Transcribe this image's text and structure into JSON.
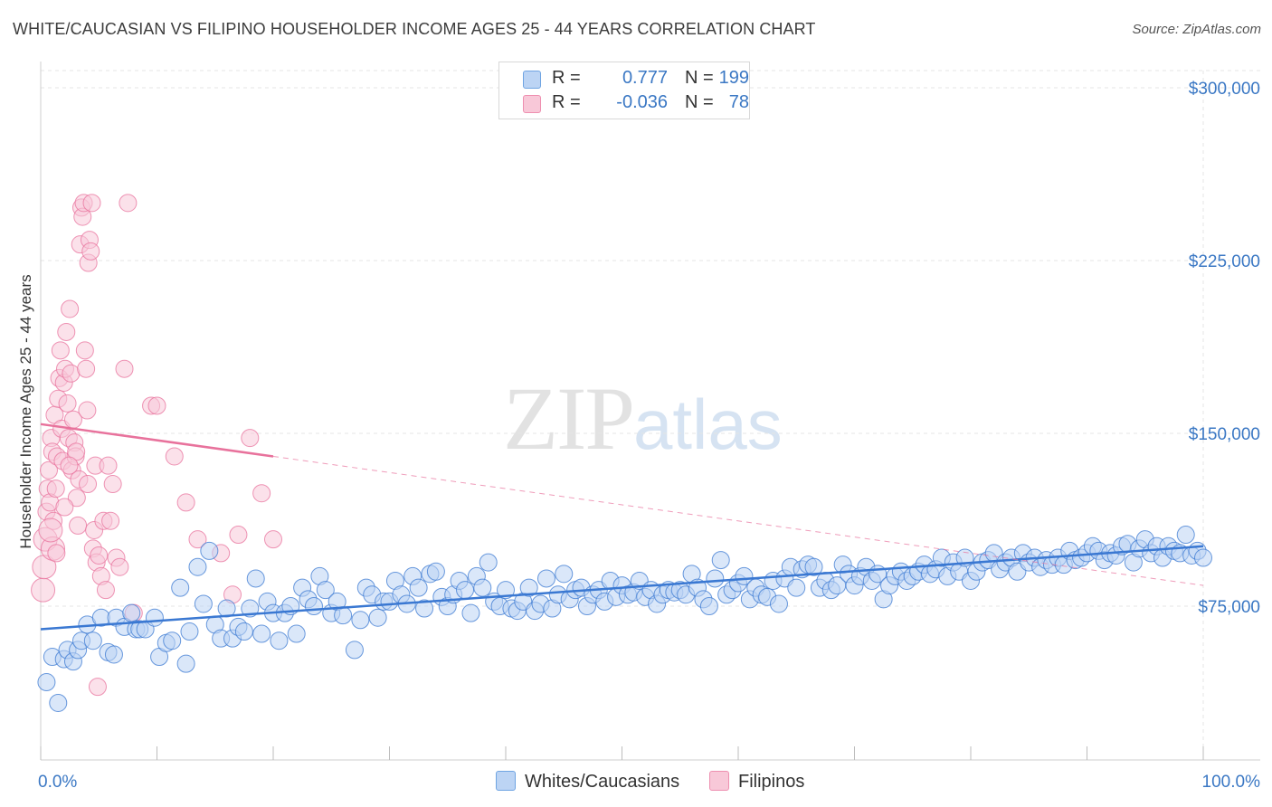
{
  "title": "WHITE/CAUCASIAN VS FILIPINO HOUSEHOLDER INCOME AGES 25 - 44 YEARS CORRELATION CHART",
  "source": "Source: ZipAtlas.com",
  "watermark": {
    "zip": "ZIP",
    "atlas": "atlas"
  },
  "legend": {
    "rows": [
      {
        "r_label": "R =",
        "r_value": "0.777",
        "n_label": "N =",
        "n_value": "199",
        "color": "#6fa4e2",
        "fill": "#bcd4f4"
      },
      {
        "r_label": "R =",
        "r_value": "-0.036",
        "n_label": "N =",
        "n_value": "78",
        "color": "#ee8fb0",
        "fill": "#f8c8d8"
      }
    ]
  },
  "bottom_legend": [
    "Whites/Caucasians",
    "Filipinos"
  ],
  "chart_data": {
    "type": "scatter",
    "xlabel": "",
    "ylabel": "Householder Income Ages 25 - 44 years",
    "xlim": [
      0,
      100
    ],
    "ylim": [
      0,
      310000
    ],
    "x_tick_labels": [
      "0.0%",
      "100.0%"
    ],
    "y_ticks": [
      75000,
      150000,
      225000,
      300000
    ],
    "y_tick_labels": [
      "$75,000",
      "$150,000",
      "$225,000",
      "$300,000"
    ],
    "grid": true,
    "legend_position": "top-center",
    "series": [
      {
        "name": "Whites/Caucasians",
        "color": "#3a78d2",
        "fill": "#bcd4f4",
        "trend": {
          "x0": 0,
          "y0": 65000,
          "x1": 100,
          "y1": 101000,
          "solid_to": 100
        },
        "points": [
          [
            0.5,
            42000
          ],
          [
            1,
            53000
          ],
          [
            1.5,
            33000
          ],
          [
            2,
            52000
          ],
          [
            2.3,
            56000
          ],
          [
            2.8,
            51000
          ],
          [
            3.2,
            56000
          ],
          [
            3.5,
            60000
          ],
          [
            4,
            67000
          ],
          [
            4.5,
            60000
          ],
          [
            5.2,
            70000
          ],
          [
            5.8,
            55000
          ],
          [
            6.3,
            54000
          ],
          [
            6.5,
            70000
          ],
          [
            7.2,
            66000
          ],
          [
            7.8,
            72000
          ],
          [
            8.2,
            65000
          ],
          [
            8.5,
            65000
          ],
          [
            9,
            65000
          ],
          [
            9.8,
            70000
          ],
          [
            10.2,
            53000
          ],
          [
            10.8,
            59000
          ],
          [
            11.3,
            60000
          ],
          [
            12,
            83000
          ],
          [
            12.5,
            50000
          ],
          [
            12.8,
            64000
          ],
          [
            13.5,
            92000
          ],
          [
            14,
            76000
          ],
          [
            14.5,
            99000
          ],
          [
            15,
            67000
          ],
          [
            15.5,
            61000
          ],
          [
            16,
            74000
          ],
          [
            16.5,
            61000
          ],
          [
            17,
            66000
          ],
          [
            17.5,
            64000
          ],
          [
            18,
            74000
          ],
          [
            18.5,
            87000
          ],
          [
            19,
            63000
          ],
          [
            19.5,
            77000
          ],
          [
            20,
            72000
          ],
          [
            20.5,
            60000
          ],
          [
            21,
            72000
          ],
          [
            21.5,
            75000
          ],
          [
            22,
            63000
          ],
          [
            22.5,
            83000
          ],
          [
            23,
            78000
          ],
          [
            23.5,
            75000
          ],
          [
            24,
            88000
          ],
          [
            24.5,
            82000
          ],
          [
            25,
            72000
          ],
          [
            25.5,
            77000
          ],
          [
            26,
            71000
          ],
          [
            27,
            56000
          ],
          [
            27.5,
            69000
          ],
          [
            28,
            83000
          ],
          [
            28.5,
            80000
          ],
          [
            29,
            70000
          ],
          [
            29.5,
            77000
          ],
          [
            30,
            77000
          ],
          [
            30.5,
            86000
          ],
          [
            31,
            80000
          ],
          [
            31.5,
            76000
          ],
          [
            32,
            88000
          ],
          [
            32.5,
            83000
          ],
          [
            33,
            74000
          ],
          [
            33.5,
            89000
          ],
          [
            34,
            90000
          ],
          [
            34.5,
            79000
          ],
          [
            35,
            75000
          ],
          [
            35.5,
            80000
          ],
          [
            36,
            86000
          ],
          [
            36.5,
            82000
          ],
          [
            37,
            72000
          ],
          [
            37.5,
            88000
          ],
          [
            38,
            83000
          ],
          [
            38.5,
            94000
          ],
          [
            39,
            77000
          ],
          [
            39.5,
            75000
          ],
          [
            40,
            82000
          ],
          [
            40.5,
            74000
          ],
          [
            41,
            73000
          ],
          [
            41.5,
            77000
          ],
          [
            42,
            83000
          ],
          [
            42.5,
            73000
          ],
          [
            43,
            76000
          ],
          [
            43.5,
            87000
          ],
          [
            44,
            74000
          ],
          [
            44.5,
            80000
          ],
          [
            45,
            89000
          ],
          [
            45.5,
            78000
          ],
          [
            46,
            82000
          ],
          [
            46.5,
            83000
          ],
          [
            47,
            75000
          ],
          [
            47.5,
            80000
          ],
          [
            48,
            82000
          ],
          [
            48.5,
            77000
          ],
          [
            49,
            86000
          ],
          [
            49.5,
            79000
          ],
          [
            50,
            84000
          ],
          [
            50.5,
            80000
          ],
          [
            51,
            81000
          ],
          [
            51.5,
            86000
          ],
          [
            52,
            79000
          ],
          [
            52.5,
            82000
          ],
          [
            53,
            76000
          ],
          [
            53.5,
            80000
          ],
          [
            54,
            82000
          ],
          [
            54.5,
            81000
          ],
          [
            55,
            82000
          ],
          [
            55.5,
            80000
          ],
          [
            56,
            89000
          ],
          [
            56.5,
            83000
          ],
          [
            57,
            78000
          ],
          [
            57.5,
            75000
          ],
          [
            58,
            87000
          ],
          [
            58.5,
            95000
          ],
          [
            59,
            80000
          ],
          [
            59.5,
            82000
          ],
          [
            60,
            85000
          ],
          [
            60.5,
            88000
          ],
          [
            61,
            78000
          ],
          [
            61.5,
            83000
          ],
          [
            62,
            80000
          ],
          [
            62.5,
            79000
          ],
          [
            63,
            86000
          ],
          [
            63.5,
            76000
          ],
          [
            64,
            87000
          ],
          [
            64.5,
            92000
          ],
          [
            65,
            83000
          ],
          [
            65.5,
            91000
          ],
          [
            66,
            93000
          ],
          [
            66.5,
            92000
          ],
          [
            67,
            83000
          ],
          [
            67.5,
            86000
          ],
          [
            68,
            82000
          ],
          [
            68.5,
            84000
          ],
          [
            69,
            93000
          ],
          [
            69.5,
            89000
          ],
          [
            70,
            84000
          ],
          [
            70.5,
            88000
          ],
          [
            71,
            92000
          ],
          [
            71.5,
            86000
          ],
          [
            72,
            89000
          ],
          [
            72.5,
            78000
          ],
          [
            73,
            84000
          ],
          [
            73.5,
            88000
          ],
          [
            74,
            90000
          ],
          [
            74.5,
            86000
          ],
          [
            75,
            88000
          ],
          [
            75.5,
            90000
          ],
          [
            76,
            93000
          ],
          [
            76.5,
            89000
          ],
          [
            77,
            91000
          ],
          [
            77.5,
            96000
          ],
          [
            78,
            88000
          ],
          [
            78.5,
            94000
          ],
          [
            79,
            90000
          ],
          [
            79.5,
            96000
          ],
          [
            80,
            86000
          ],
          [
            80.5,
            90000
          ],
          [
            81,
            94000
          ],
          [
            81.5,
            95000
          ],
          [
            82,
            98000
          ],
          [
            82.5,
            91000
          ],
          [
            83,
            94000
          ],
          [
            83.5,
            96000
          ],
          [
            84,
            90000
          ],
          [
            84.5,
            98000
          ],
          [
            85,
            94000
          ],
          [
            85.5,
            96000
          ],
          [
            86,
            92000
          ],
          [
            86.5,
            95000
          ],
          [
            87,
            93000
          ],
          [
            87.5,
            96000
          ],
          [
            88,
            93000
          ],
          [
            88.5,
            99000
          ],
          [
            89,
            95000
          ],
          [
            89.5,
            96000
          ],
          [
            90,
            98000
          ],
          [
            90.5,
            101000
          ],
          [
            91,
            99000
          ],
          [
            91.5,
            95000
          ],
          [
            92,
            98000
          ],
          [
            92.5,
            97000
          ],
          [
            93,
            101000
          ],
          [
            93.5,
            102000
          ],
          [
            94,
            94000
          ],
          [
            94.5,
            100000
          ],
          [
            95,
            104000
          ],
          [
            95.5,
            98000
          ],
          [
            96,
            101000
          ],
          [
            96.5,
            96000
          ],
          [
            97,
            101000
          ],
          [
            97.5,
            99000
          ],
          [
            98,
            98000
          ],
          [
            98.5,
            106000
          ],
          [
            99,
            97000
          ],
          [
            99.5,
            99000
          ],
          [
            100,
            96000
          ]
        ]
      },
      {
        "name": "Filipinos",
        "color": "#e8729c",
        "fill": "#f8c8d8",
        "trend": {
          "x0": 0,
          "y0": 154000,
          "x1": 100,
          "y1": 84000,
          "solid_to": 20
        },
        "points": [
          [
            0.2,
            82000
          ],
          [
            0.3,
            92000
          ],
          [
            0.4,
            104000
          ],
          [
            0.5,
            116000
          ],
          [
            0.6,
            126000
          ],
          [
            0.7,
            134000
          ],
          [
            0.8,
            120000
          ],
          [
            0.9,
            148000
          ],
          [
            1,
            142000
          ],
          [
            1.1,
            112000
          ],
          [
            1.2,
            158000
          ],
          [
            1.3,
            126000
          ],
          [
            1.4,
            140000
          ],
          [
            1.5,
            165000
          ],
          [
            1.6,
            174000
          ],
          [
            1.7,
            186000
          ],
          [
            1.8,
            152000
          ],
          [
            1.9,
            138000
          ],
          [
            2,
            172000
          ],
          [
            2.1,
            178000
          ],
          [
            2.2,
            194000
          ],
          [
            2.3,
            163000
          ],
          [
            2.4,
            148000
          ],
          [
            2.5,
            204000
          ],
          [
            2.6,
            176000
          ],
          [
            2.7,
            134000
          ],
          [
            2.8,
            156000
          ],
          [
            2.9,
            146000
          ],
          [
            3,
            140000
          ],
          [
            3.1,
            122000
          ],
          [
            3.2,
            110000
          ],
          [
            3.3,
            130000
          ],
          [
            3.4,
            232000
          ],
          [
            3.5,
            248000
          ],
          [
            3.6,
            244000
          ],
          [
            3.7,
            250000
          ],
          [
            3.8,
            186000
          ],
          [
            3.9,
            178000
          ],
          [
            4,
            160000
          ],
          [
            4.1,
            224000
          ],
          [
            4.2,
            234000
          ],
          [
            4.3,
            229000
          ],
          [
            4.4,
            250000
          ],
          [
            4.5,
            100000
          ],
          [
            4.6,
            108000
          ],
          [
            4.7,
            136000
          ],
          [
            4.8,
            94000
          ],
          [
            4.9,
            40000
          ],
          [
            5,
            97000
          ],
          [
            5.2,
            88000
          ],
          [
            5.4,
            112000
          ],
          [
            5.6,
            82000
          ],
          [
            5.8,
            136000
          ],
          [
            6,
            112000
          ],
          [
            6.2,
            128000
          ],
          [
            6.5,
            96000
          ],
          [
            6.8,
            92000
          ],
          [
            7.2,
            178000
          ],
          [
            7.5,
            250000
          ],
          [
            8,
            72000
          ],
          [
            9.5,
            162000
          ],
          [
            10,
            162000
          ],
          [
            11.5,
            140000
          ],
          [
            12.5,
            120000
          ],
          [
            13.5,
            104000
          ],
          [
            15.5,
            98000
          ],
          [
            16.5,
            80000
          ],
          [
            17,
            106000
          ],
          [
            18,
            148000
          ],
          [
            19,
            124000
          ],
          [
            20,
            104000
          ],
          [
            1.05,
            100000
          ],
          [
            2.05,
            118000
          ],
          [
            3.05,
            142000
          ],
          [
            4.05,
            128000
          ],
          [
            0.85,
            108000
          ],
          [
            1.35,
            98000
          ],
          [
            2.45,
            136000
          ]
        ]
      }
    ]
  }
}
